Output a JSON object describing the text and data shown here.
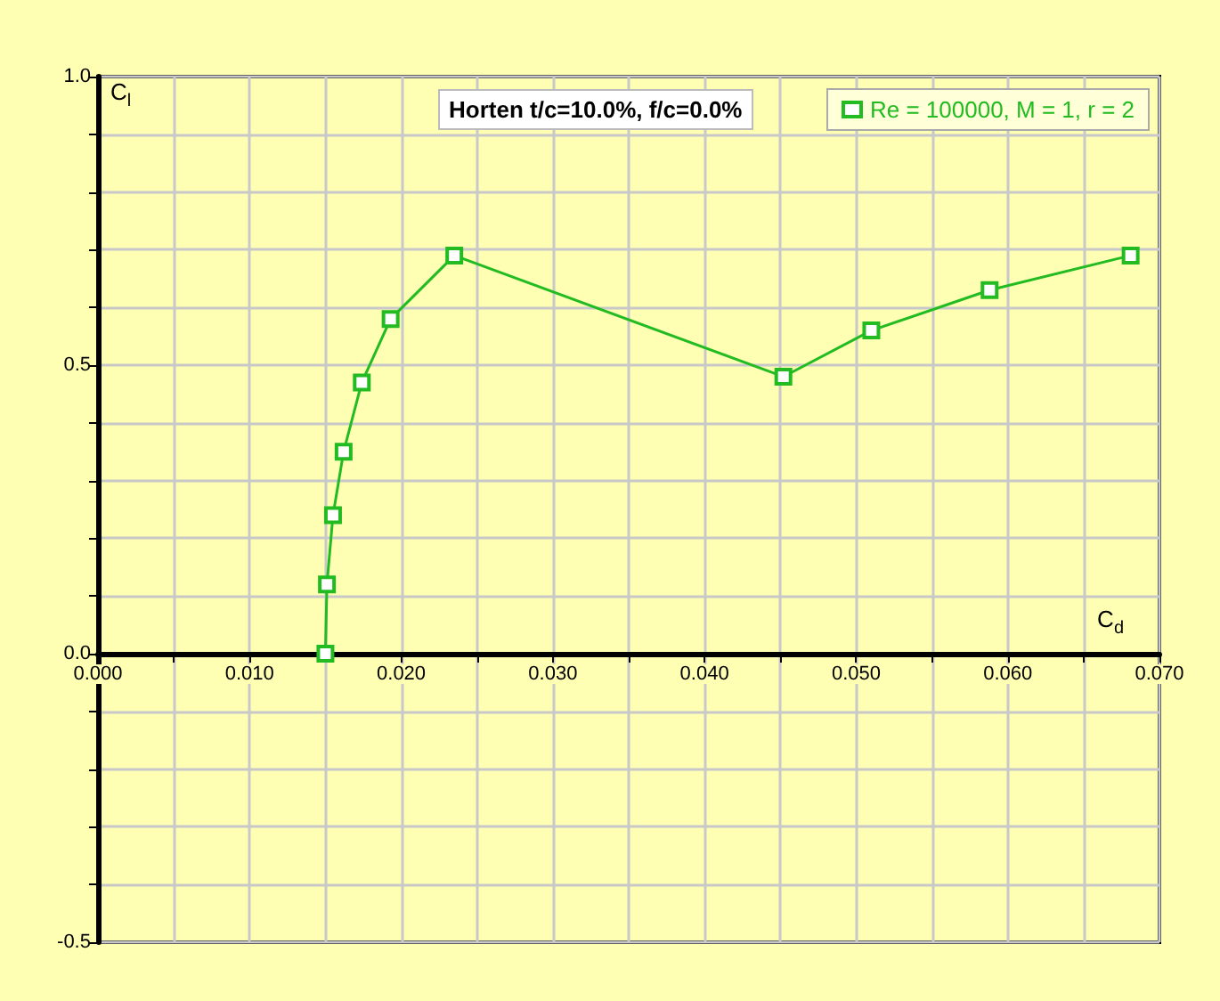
{
  "chart_data": {
    "type": "line",
    "title": "Horten t/c=10.0%, f/c=0.0%",
    "xlabel": "C$_{d}$",
    "ylabel": "C$_{l}$",
    "series": [
      {
        "name": "Re = 100000, M = 1, r = 2",
        "color": "#22bb22",
        "x": [
          0.015,
          0.0151,
          0.0155,
          0.0162,
          0.0174,
          0.0193,
          0.0235,
          0.0452,
          0.051,
          0.0588,
          0.0681
        ],
        "values": [
          0.0,
          0.12,
          0.24,
          0.35,
          0.47,
          0.58,
          0.69,
          0.48,
          0.56,
          0.63,
          0.69
        ]
      }
    ],
    "xlim": [
      0,
      0.07
    ],
    "xticks": [
      {
        "value": 0,
        "label": "0.000"
      },
      {
        "value": 0.005,
        "label": null
      },
      {
        "value": 0.01,
        "label": "0.010"
      },
      {
        "value": 0.015,
        "label": null
      },
      {
        "value": 0.02,
        "label": "0.020"
      },
      {
        "value": 0.025,
        "label": null
      },
      {
        "value": 0.03,
        "label": "0.030"
      },
      {
        "value": 0.035,
        "label": null
      },
      {
        "value": 0.04,
        "label": "0.040"
      },
      {
        "value": 0.045,
        "label": null
      },
      {
        "value": 0.05,
        "label": "0.050"
      },
      {
        "value": 0.055,
        "label": null
      },
      {
        "value": 0.06,
        "label": "0.060"
      },
      {
        "value": 0.065,
        "label": null
      },
      {
        "value": 0.07,
        "label": "0.070"
      }
    ],
    "ylim": [
      -0.5,
      1.0
    ],
    "yticks": [
      {
        "value": -0.5,
        "label": "-0.5"
      },
      {
        "value": -0.4,
        "label": null
      },
      {
        "value": -0.3,
        "label": null
      },
      {
        "value": -0.2,
        "label": null
      },
      {
        "value": -0.1,
        "label": null
      },
      {
        "value": 0,
        "label": "0.0"
      },
      {
        "value": 0.1,
        "label": null
      },
      {
        "value": 0.2,
        "label": null
      },
      {
        "value": 0.3,
        "label": null
      },
      {
        "value": 0.4,
        "label": null
      },
      {
        "value": 0.5,
        "label": "0.5"
      },
      {
        "value": 0.6,
        "label": null
      },
      {
        "value": 0.7,
        "label": null
      },
      {
        "value": 0.8,
        "label": null
      },
      {
        "value": 0.9,
        "label": null
      },
      {
        "value": 1.0,
        "label": "1.0"
      }
    ],
    "grid": true,
    "legend": "top right",
    "marker": "square",
    "line_style": "solid"
  }
}
